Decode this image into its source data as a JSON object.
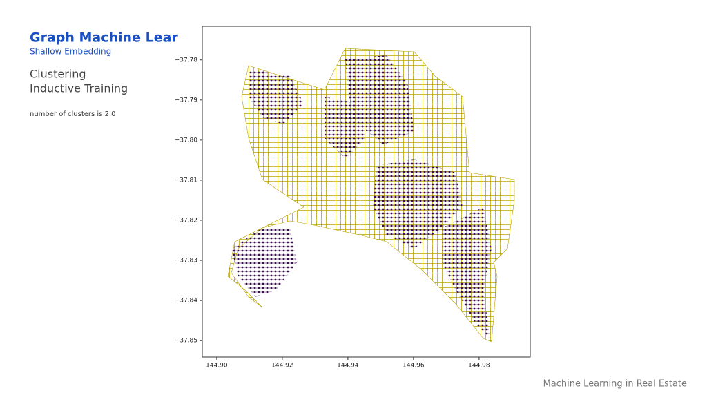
{
  "slide": {
    "title": "Graph Machine Lear",
    "subtitle": "Shallow Embedding",
    "heading_lines": [
      "Clustering",
      "Inductive Training"
    ],
    "note": "number of clusters is 2.0",
    "footer": "Machine Learning in Real Estate"
  },
  "chart_data": {
    "type": "network",
    "xlim": [
      144.8956,
      144.9956
    ],
    "ylim": [
      -37.8541,
      -37.7716
    ],
    "xticks": [
      {
        "value": 144.9,
        "label": "144.90"
      },
      {
        "value": 144.92,
        "label": "144.92"
      },
      {
        "value": 144.94,
        "label": "144.94"
      },
      {
        "value": 144.96,
        "label": "144.96"
      },
      {
        "value": 144.98,
        "label": "144.98"
      }
    ],
    "yticks": [
      {
        "value": -37.78,
        "label": "−37.78"
      },
      {
        "value": -37.79,
        "label": "−37.79"
      },
      {
        "value": -37.8,
        "label": "−37.80"
      },
      {
        "value": -37.81,
        "label": "−37.81"
      },
      {
        "value": -37.82,
        "label": "−37.82"
      },
      {
        "value": -37.83,
        "label": "−37.83"
      },
      {
        "value": -37.84,
        "label": "−37.84"
      },
      {
        "value": -37.85,
        "label": "−37.85"
      }
    ]
  }
}
